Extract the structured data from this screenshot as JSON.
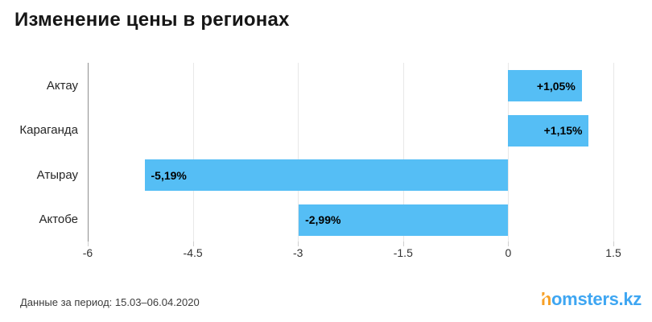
{
  "title": "Изменение цены в регионах",
  "chart_data": {
    "type": "bar",
    "orientation": "horizontal",
    "title": "Изменение цены в регионах",
    "categories": [
      "Актау",
      "Караганда",
      "Атырау",
      "Актобе"
    ],
    "values": [
      1.05,
      1.15,
      -5.19,
      -2.99
    ],
    "bar_labels": [
      "+1,05%",
      "+1,15%",
      "-5,19%",
      "-2,99%"
    ],
    "xlabel": "",
    "ylabel": "",
    "xlim": [
      -6,
      1.5
    ],
    "x_ticks": [
      -6,
      -4.5,
      -3,
      -1.5,
      0,
      1.5
    ],
    "x_tick_labels": [
      "-6",
      "-4.5",
      "-3",
      "-1.5",
      "0",
      "1.5"
    ],
    "grid": true,
    "legend": false,
    "bar_color": "#55BEF5",
    "unit": "%"
  },
  "footer": {
    "period_note": "Данные за период: 15.03–06.04.2020",
    "logo": {
      "prefix": "h",
      "suffix": "omsters.kz"
    }
  },
  "colors": {
    "bar": "#55BEF5",
    "grid": "#e8e8e8",
    "axis_line": "#8f8f8f",
    "title_text": "#161616",
    "category_text": "#262626",
    "tick_text": "#333333",
    "bar_label_text": "#000000",
    "footer_text": "#3c3c3c",
    "logo_orange": "#F7A026",
    "logo_blue": "#3EA6F2"
  }
}
